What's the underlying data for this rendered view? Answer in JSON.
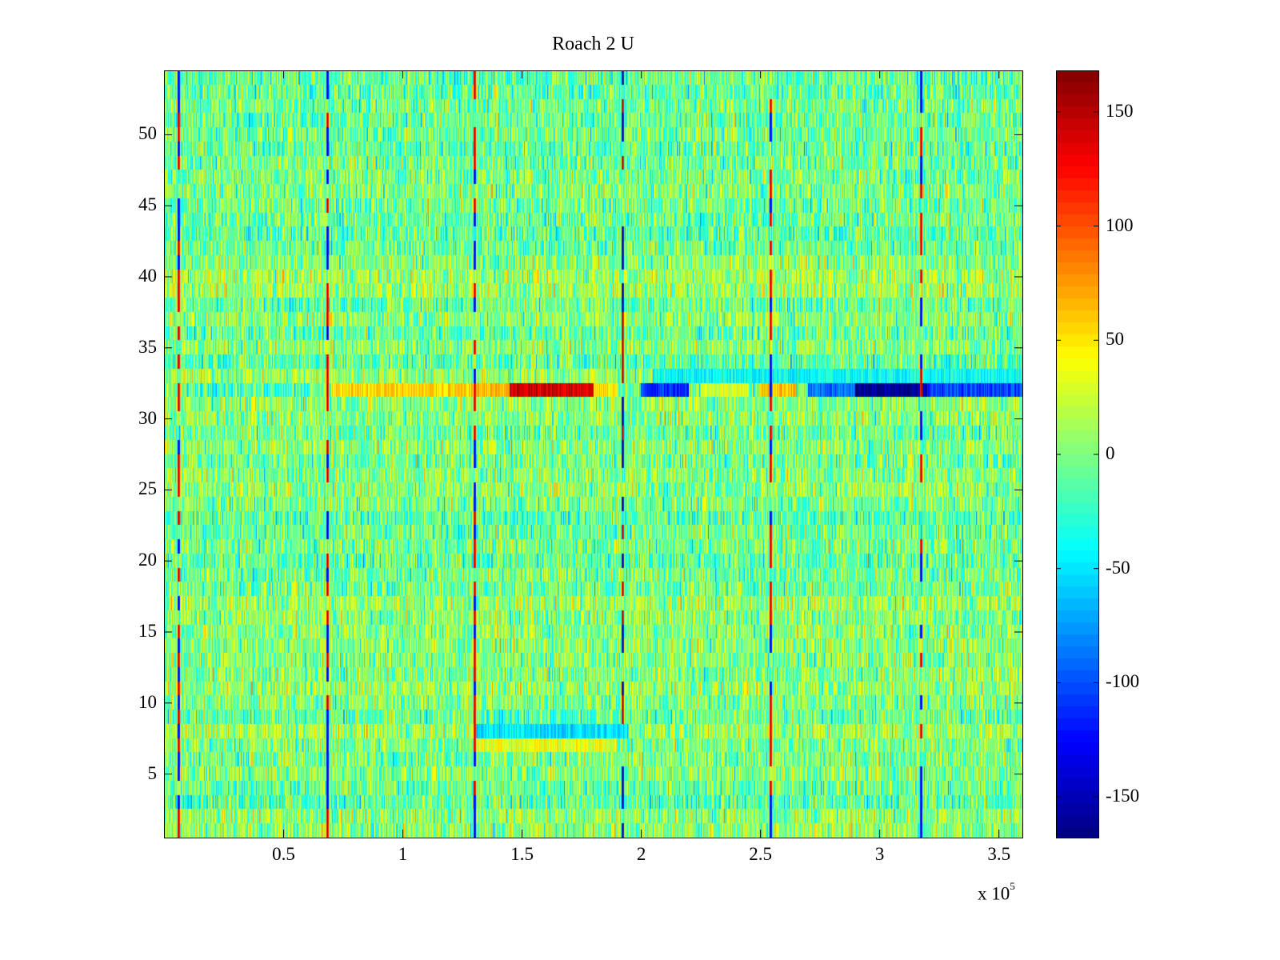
{
  "chart_data": {
    "type": "heatmap",
    "title": "Roach 2 U",
    "xlabel": "",
    "ylabel": "",
    "x_exponent_label": "x 10",
    "x_exponent": "5",
    "xlim": [
      0,
      360000
    ],
    "ylim": [
      0.5,
      54.5
    ],
    "rows": 54,
    "xticks": [
      50000,
      100000,
      150000,
      200000,
      250000,
      300000,
      350000
    ],
    "xtick_labels": [
      "0.5",
      "1",
      "1.5",
      "2",
      "2.5",
      "3",
      "3.5"
    ],
    "yticks": [
      5,
      10,
      15,
      20,
      25,
      30,
      35,
      40,
      45,
      50
    ],
    "ytick_labels": [
      "5",
      "10",
      "15",
      "20",
      "25",
      "30",
      "35",
      "40",
      "45",
      "50"
    ],
    "colormap": "jet",
    "clim": [
      -168,
      168
    ],
    "colorbar_ticks": [
      150,
      100,
      50,
      0,
      -50,
      -100,
      -150
    ],
    "colorbar_tick_labels": [
      "150",
      "100",
      "50",
      "0",
      "-50",
      "-100",
      "-150"
    ],
    "background_noise_range": [
      -60,
      60
    ],
    "periodic_stripes_x": [
      5700,
      68000,
      130000,
      192000,
      254000,
      317000
    ],
    "periodic_stripe_value_magnitude": 160,
    "bands": [
      {
        "row": 32,
        "x0": 70000,
        "x1": 130000,
        "value": 55
      },
      {
        "row": 32,
        "x0": 130000,
        "x1": 145000,
        "value": 65
      },
      {
        "row": 32,
        "x0": 145000,
        "x1": 180000,
        "value": 140
      },
      {
        "row": 32,
        "x0": 180000,
        "x1": 190000,
        "value": 50
      },
      {
        "row": 32,
        "x0": 200000,
        "x1": 220000,
        "value": -110
      },
      {
        "row": 32,
        "x0": 225000,
        "x1": 245000,
        "value": 30
      },
      {
        "row": 32,
        "x0": 250000,
        "x1": 265000,
        "value": 65
      },
      {
        "row": 32,
        "x0": 270000,
        "x1": 290000,
        "value": -90
      },
      {
        "row": 32,
        "x0": 290000,
        "x1": 320000,
        "value": -160
      },
      {
        "row": 32,
        "x0": 320000,
        "x1": 360000,
        "value": -105
      },
      {
        "row": 33,
        "x0": 205000,
        "x1": 360000,
        "value": -40
      },
      {
        "row": 8,
        "x0": 130000,
        "x1": 195000,
        "value": -50
      },
      {
        "row": 7,
        "x0": 130000,
        "x1": 190000,
        "value": 35
      }
    ]
  }
}
